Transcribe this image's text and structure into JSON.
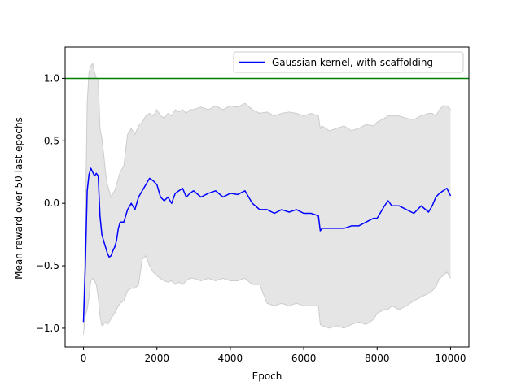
{
  "chart_data": {
    "type": "line",
    "xlabel": "Epoch",
    "ylabel": "Mean reward over 50 last epochs",
    "xlim": [
      -500,
      10500
    ],
    "ylim": [
      -1.15,
      1.25
    ],
    "xticks": [
      0,
      2000,
      4000,
      6000,
      8000,
      10000
    ],
    "xtick_labels": [
      "0",
      "2000",
      "4000",
      "6000",
      "8000",
      "10000"
    ],
    "yticks": [
      -1.0,
      -0.5,
      0.0,
      0.5,
      1.0
    ],
    "ytick_labels": [
      "−1.0",
      "−0.5",
      "0.0",
      "0.5",
      "1.0"
    ],
    "grid": false,
    "legend_position": "upper right",
    "reference_line": {
      "y": 1.0,
      "color": "#008000"
    },
    "series": [
      {
        "name": "Gaussian kernel, with scaffolding",
        "color": "#0000ff",
        "x": [
          0,
          50,
          100,
          150,
          200,
          250,
          300,
          350,
          400,
          450,
          500,
          550,
          600,
          650,
          700,
          750,
          800,
          850,
          900,
          950,
          1000,
          1100,
          1200,
          1300,
          1400,
          1500,
          1600,
          1700,
          1800,
          1900,
          2000,
          2100,
          2200,
          2300,
          2400,
          2500,
          2600,
          2700,
          2800,
          2900,
          3000,
          3200,
          3400,
          3600,
          3800,
          4000,
          4200,
          4400,
          4600,
          4800,
          5000,
          5200,
          5400,
          5600,
          5800,
          6000,
          6200,
          6400,
          6450,
          6500,
          6700,
          6900,
          7100,
          7300,
          7500,
          7700,
          7900,
          8000,
          8200,
          8300,
          8400,
          8600,
          8800,
          9000,
          9200,
          9400,
          9500,
          9600,
          9700,
          9800,
          9900,
          10000
        ],
        "y": [
          -0.95,
          -0.5,
          0.1,
          0.23,
          0.28,
          0.25,
          0.22,
          0.24,
          0.22,
          -0.1,
          -0.25,
          -0.3,
          -0.35,
          -0.4,
          -0.43,
          -0.42,
          -0.38,
          -0.35,
          -0.3,
          -0.2,
          -0.15,
          -0.15,
          -0.05,
          0.0,
          -0.05,
          0.05,
          0.1,
          0.15,
          0.2,
          0.18,
          0.15,
          0.05,
          0.02,
          0.05,
          0.0,
          0.08,
          0.1,
          0.12,
          0.05,
          0.08,
          0.1,
          0.05,
          0.08,
          0.1,
          0.05,
          0.08,
          0.07,
          0.1,
          0.0,
          -0.05,
          -0.05,
          -0.08,
          -0.05,
          -0.07,
          -0.05,
          -0.08,
          -0.08,
          -0.1,
          -0.22,
          -0.2,
          -0.2,
          -0.2,
          -0.2,
          -0.18,
          -0.18,
          -0.15,
          -0.12,
          -0.12,
          -0.02,
          0.02,
          -0.02,
          -0.02,
          -0.05,
          -0.08,
          -0.02,
          -0.07,
          -0.02,
          0.05,
          0.08,
          0.1,
          0.12,
          0.06
        ]
      }
    ],
    "band": {
      "color": "#e5e5e5",
      "edge_color": "#cccccc",
      "x": [
        0,
        50,
        100,
        150,
        200,
        250,
        300,
        350,
        400,
        450,
        500,
        550,
        600,
        650,
        700,
        750,
        800,
        850,
        900,
        950,
        1000,
        1100,
        1200,
        1300,
        1400,
        1500,
        1600,
        1700,
        1800,
        1900,
        2000,
        2100,
        2200,
        2300,
        2400,
        2500,
        2600,
        2700,
        2800,
        2900,
        3000,
        3200,
        3400,
        3600,
        3800,
        4000,
        4200,
        4400,
        4600,
        4800,
        5000,
        5200,
        5400,
        5600,
        5800,
        6000,
        6200,
        6400,
        6450,
        6500,
        6700,
        6900,
        7100,
        7300,
        7500,
        7700,
        7900,
        8000,
        8200,
        8300,
        8400,
        8600,
        8800,
        9000,
        9200,
        9400,
        9500,
        9600,
        9700,
        9800,
        9900,
        10000
      ],
      "upper": [
        -0.9,
        -0.2,
        0.8,
        1.05,
        1.1,
        1.12,
        1.05,
        1.0,
        1.0,
        0.6,
        0.52,
        0.4,
        0.25,
        0.15,
        0.1,
        0.05,
        0.08,
        0.1,
        0.15,
        0.2,
        0.25,
        0.3,
        0.55,
        0.6,
        0.55,
        0.62,
        0.65,
        0.7,
        0.72,
        0.7,
        0.75,
        0.7,
        0.68,
        0.72,
        0.7,
        0.75,
        0.73,
        0.75,
        0.72,
        0.75,
        0.75,
        0.77,
        0.75,
        0.78,
        0.75,
        0.78,
        0.77,
        0.8,
        0.75,
        0.72,
        0.73,
        0.7,
        0.72,
        0.73,
        0.72,
        0.7,
        0.72,
        0.7,
        0.6,
        0.62,
        0.58,
        0.6,
        0.62,
        0.58,
        0.6,
        0.63,
        0.62,
        0.65,
        0.68,
        0.7,
        0.7,
        0.7,
        0.68,
        0.67,
        0.7,
        0.72,
        0.72,
        0.7,
        0.75,
        0.78,
        0.78,
        0.75
      ],
      "lower": [
        -1.05,
        -0.9,
        -0.85,
        -0.75,
        -0.62,
        -0.6,
        -0.62,
        -0.65,
        -0.75,
        -0.9,
        -0.98,
        -0.97,
        -0.95,
        -0.97,
        -0.95,
        -0.92,
        -0.9,
        -0.88,
        -0.85,
        -0.82,
        -0.8,
        -0.78,
        -0.7,
        -0.68,
        -0.68,
        -0.65,
        -0.45,
        -0.42,
        -0.5,
        -0.55,
        -0.58,
        -0.6,
        -0.62,
        -0.63,
        -0.62,
        -0.65,
        -0.63,
        -0.65,
        -0.62,
        -0.6,
        -0.6,
        -0.62,
        -0.6,
        -0.62,
        -0.6,
        -0.62,
        -0.62,
        -0.6,
        -0.65,
        -0.65,
        -0.8,
        -0.82,
        -0.8,
        -0.82,
        -0.8,
        -0.82,
        -0.82,
        -0.82,
        -0.97,
        -0.98,
        -1.0,
        -0.98,
        -1.0,
        -0.97,
        -0.95,
        -0.97,
        -0.93,
        -0.88,
        -0.85,
        -0.85,
        -0.82,
        -0.85,
        -0.82,
        -0.78,
        -0.75,
        -0.72,
        -0.7,
        -0.67,
        -0.6,
        -0.58,
        -0.55,
        -0.6
      ]
    }
  }
}
